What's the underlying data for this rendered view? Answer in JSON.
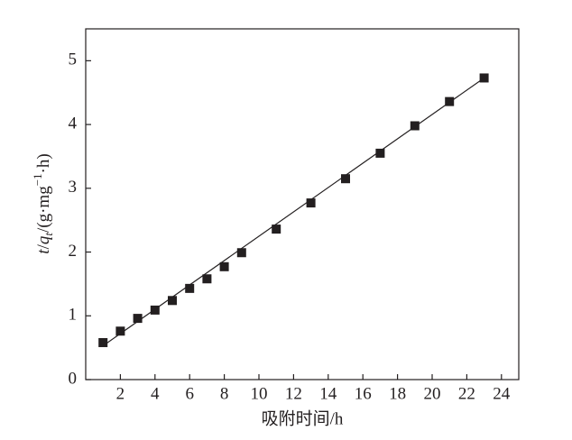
{
  "chart_data": {
    "type": "scatter",
    "xlabel": "吸附时间/h",
    "ylabel": [
      "t",
      "/",
      "q",
      "t",
      "/(g·mg",
      "−1",
      "·h)"
    ],
    "series": [
      {
        "type": "scatter",
        "color": "#231f20",
        "x": [
          1,
          2,
          3,
          4,
          5,
          6,
          7,
          8,
          9,
          11,
          13,
          15,
          17,
          19,
          21,
          23
        ],
        "values": [
          0.58,
          0.76,
          0.96,
          1.09,
          1.24,
          1.43,
          1.58,
          1.77,
          1.99,
          2.36,
          2.77,
          3.15,
          3.55,
          3.98,
          4.36,
          4.73
        ]
      },
      {
        "type": "line",
        "color": "#231f20",
        "x": [
          1,
          23
        ],
        "values": [
          0.53,
          4.73
        ]
      }
    ],
    "xlim": [
      0,
      25
    ],
    "ylim": [
      0,
      5.5
    ],
    "xticks": [
      2,
      4,
      6,
      8,
      10,
      12,
      14,
      16,
      18,
      20,
      22,
      24
    ],
    "yticks": [
      0,
      1,
      2,
      3,
      4,
      5
    ]
  }
}
